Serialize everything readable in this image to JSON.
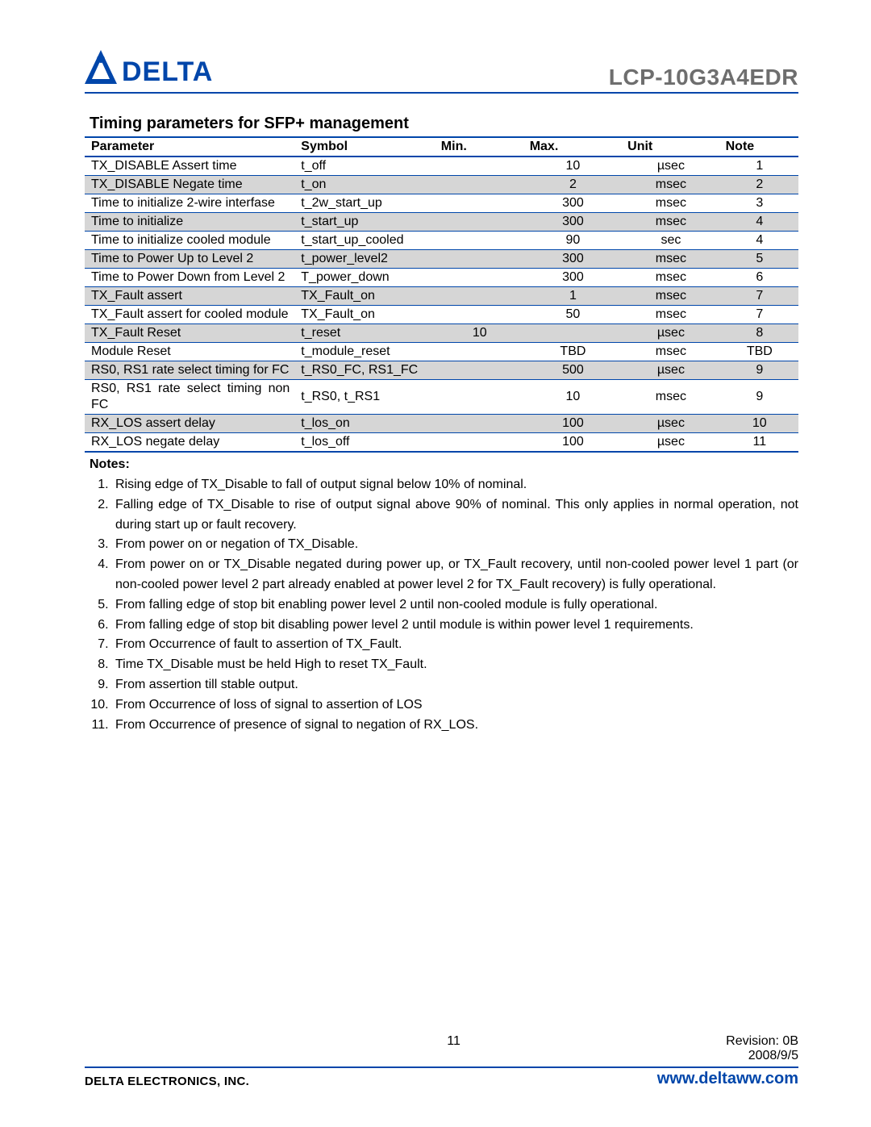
{
  "brand": {
    "name": "DELTA",
    "logo_fill": "#0046aa",
    "underline_color": "#0046aa"
  },
  "part_number": "LCP-10G3A4EDR",
  "section_title": "Timing parameters for SFP+ management",
  "table": {
    "columns": [
      "Parameter",
      "Symbol",
      "Min.",
      "Max.",
      "Unit",
      "Note"
    ],
    "border_color": "#0046aa",
    "shade_color": "#d6d6d6",
    "rows": [
      {
        "shaded": false,
        "cells": [
          "TX_DISABLE Assert time",
          "t_off",
          "",
          "10",
          "µsec",
          "1"
        ]
      },
      {
        "shaded": true,
        "cells": [
          "TX_DISABLE Negate time",
          "t_on",
          "",
          "2",
          "msec",
          "2"
        ]
      },
      {
        "shaded": false,
        "cells": [
          "Time to initialize 2-wire interfase",
          "t_2w_start_up",
          "",
          "300",
          "msec",
          "3"
        ]
      },
      {
        "shaded": true,
        "cells": [
          "Time to initialize",
          "t_start_up",
          "",
          "300",
          "msec",
          "4"
        ]
      },
      {
        "shaded": false,
        "cells": [
          "Time to initialize cooled module",
          "t_start_up_cooled",
          "",
          "90",
          "sec",
          "4"
        ]
      },
      {
        "shaded": true,
        "cells": [
          "Time to Power Up to Level 2",
          "t_power_level2",
          "",
          "300",
          "msec",
          "5"
        ]
      },
      {
        "shaded": false,
        "cells": [
          "Time to Power Down from Level 2",
          "T_power_down",
          "",
          "300",
          "msec",
          "6"
        ]
      },
      {
        "shaded": true,
        "cells": [
          "TX_Fault assert",
          "TX_Fault_on",
          "",
          "1",
          "msec",
          "7"
        ]
      },
      {
        "shaded": false,
        "cells": [
          "TX_Fault assert for cooled module",
          "TX_Fault_on",
          "",
          "50",
          "msec",
          "7"
        ]
      },
      {
        "shaded": true,
        "cells": [
          "TX_Fault Reset",
          "t_reset",
          "10",
          "",
          "µsec",
          "8"
        ]
      },
      {
        "shaded": false,
        "cells": [
          "Module Reset",
          "t_module_reset",
          "",
          "TBD",
          "msec",
          "TBD"
        ]
      },
      {
        "shaded": true,
        "cells": [
          "RS0, RS1 rate select timing for FC",
          "t_RS0_FC, RS1_FC",
          "",
          "500",
          "µsec",
          "9"
        ]
      },
      {
        "shaded": false,
        "cells": [
          "RS0, RS1 rate select timing non FC",
          "t_RS0, t_RS1",
          "",
          "10",
          "msec",
          "9"
        ]
      },
      {
        "shaded": true,
        "cells": [
          "RX_LOS assert delay",
          "t_los_on",
          "",
          "100",
          "µsec",
          "10"
        ]
      },
      {
        "shaded": false,
        "cells": [
          "RX_LOS negate delay",
          "t_los_off",
          "",
          "100",
          "µsec",
          "11"
        ]
      }
    ]
  },
  "notes_heading": "Notes:",
  "notes": [
    "Rising edge of TX_Disable to fall of output signal below 10% of nominal.",
    "Falling edge of TX_Disable to rise of output signal above 90% of nominal. This only applies in normal operation, not during start up or fault recovery.",
    "From power on or negation of TX_Disable.",
    "From power on or TX_Disable negated during power up, or TX_Fault recovery, until non-cooled power level 1 part (or non-cooled power level 2 part already enabled at power level 2 for TX_Fault recovery) is fully operational.",
    "From falling edge of stop bit enabling power level 2 until non-cooled module is fully operational.",
    "From falling edge of stop bit disabling power level 2 until module is within power level 1 requirements.",
    "From Occurrence of fault to assertion of TX_Fault.",
    "Time TX_Disable must be held High to reset TX_Fault.",
    "From assertion till stable output.",
    "From Occurrence of loss of signal to assertion of LOS",
    "From Occurrence of presence of signal to negation of RX_LOS."
  ],
  "footer": {
    "page_number": "11",
    "revision": "Revision:  0B",
    "date": "2008/9/5",
    "company": "DELTA ELECTRONICS, INC.",
    "url": "www.deltaww.com"
  }
}
